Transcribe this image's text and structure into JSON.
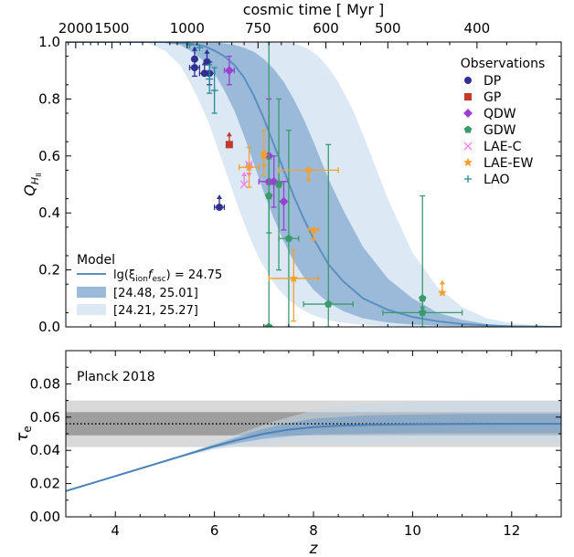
{
  "chart_data": [
    {
      "type": "line",
      "panel": "top",
      "ylabel_main": "Q",
      "ylabel_sub": "H",
      "ylabel_subsub": "II",
      "xlim": [
        3,
        13
      ],
      "ylim": [
        0,
        1.0
      ],
      "yticks": [
        "0.0",
        "0.2",
        "0.4",
        "0.6",
        "0.8",
        "1.0"
      ],
      "top_axis": {
        "label": "cosmic time [ Myr ]",
        "ticks": [
          {
            "label": "2000",
            "z": 3.2
          },
          {
            "label": "1500",
            "z": 3.93
          },
          {
            "label": "1000",
            "z": 5.45
          },
          {
            "label": "750",
            "z": 6.88
          },
          {
            "label": "600",
            "z": 8.25
          },
          {
            "label": "500",
            "z": 9.5
          },
          {
            "label": "400",
            "z": 11.3
          }
        ]
      },
      "series": [
        {
          "name": "lg(ξionfesc) = 24.75",
          "kind": "median",
          "color": "#5b8fc0",
          "x": [
            3,
            5.0,
            5.5,
            5.8,
            6.0,
            6.2,
            6.4,
            6.6,
            6.8,
            7.0,
            7.2,
            7.4,
            7.6,
            7.8,
            8.0,
            8.3,
            8.6,
            9.0,
            9.5,
            10,
            10.5,
            11,
            11.5,
            12,
            13
          ],
          "y": [
            1.0,
            1.0,
            0.995,
            0.985,
            0.97,
            0.95,
            0.92,
            0.875,
            0.81,
            0.73,
            0.64,
            0.55,
            0.46,
            0.38,
            0.31,
            0.22,
            0.16,
            0.1,
            0.06,
            0.035,
            0.02,
            0.01,
            0.005,
            0.002,
            0.0
          ]
        },
        {
          "name": "[24.48, 25.01]",
          "kind": "band",
          "color": "#9bbad9",
          "x": [
            3,
            4.8,
            5.3,
            5.6,
            5.8,
            6.0,
            6.2,
            6.4,
            6.6,
            6.8,
            7.0,
            7.2,
            7.4,
            7.6,
            7.8,
            8.0,
            8.3,
            8.6,
            9.0,
            9.5,
            10,
            10.5,
            11,
            11.5,
            12,
            13
          ],
          "upper": [
            1.0,
            1.0,
            1.0,
            1.0,
            1.0,
            1.0,
            0.995,
            0.99,
            0.98,
            0.965,
            0.94,
            0.905,
            0.86,
            0.8,
            0.73,
            0.65,
            0.52,
            0.41,
            0.28,
            0.17,
            0.1,
            0.05,
            0.025,
            0.01,
            0.003,
            0.0
          ],
          "lower": [
            1.0,
            1.0,
            0.99,
            0.96,
            0.93,
            0.89,
            0.83,
            0.76,
            0.67,
            0.57,
            0.47,
            0.38,
            0.3,
            0.23,
            0.175,
            0.13,
            0.085,
            0.055,
            0.03,
            0.015,
            0.008,
            0.004,
            0.002,
            0.001,
            0.0,
            0.0
          ]
        },
        {
          "name": "[24.21, 25.27]",
          "kind": "band",
          "color": "#dce8f3",
          "x": [
            3,
            4.6,
            5.0,
            5.3,
            5.5,
            5.7,
            5.9,
            6.1,
            6.3,
            6.5,
            6.7,
            6.9,
            7.1,
            7.3,
            7.5,
            7.7,
            7.9,
            8.1,
            8.3,
            8.5,
            8.8,
            9.1,
            9.5,
            10,
            10.5,
            11,
            11.5,
            12,
            13
          ],
          "upper": [
            1.0,
            1.0,
            1.0,
            1.0,
            1.0,
            1.0,
            1.0,
            1.0,
            1.0,
            1.0,
            1.0,
            1.0,
            1.0,
            1.0,
            1.0,
            0.99,
            0.975,
            0.95,
            0.91,
            0.86,
            0.76,
            0.63,
            0.45,
            0.26,
            0.14,
            0.07,
            0.03,
            0.012,
            0.0
          ],
          "lower": [
            1.0,
            1.0,
            0.97,
            0.92,
            0.86,
            0.79,
            0.71,
            0.61,
            0.51,
            0.41,
            0.32,
            0.24,
            0.18,
            0.13,
            0.095,
            0.068,
            0.048,
            0.034,
            0.024,
            0.017,
            0.01,
            0.006,
            0.003,
            0.001,
            0.0,
            0.0,
            0.0,
            0.0,
            0.0
          ]
        }
      ],
      "observations": [
        {
          "name": "DP",
          "marker": "circle",
          "color": "#2e3192",
          "points": [
            {
              "x": 5.6,
              "y": 0.91,
              "xerr": 0.1,
              "yerr": 0.03
            },
            {
              "x": 5.8,
              "y": 0.89,
              "xerr": 0.1,
              "up": true
            },
            {
              "x": 5.9,
              "y": 0.89,
              "xerr": 0.1,
              "yerr": 0.04
            },
            {
              "x": 5.6,
              "y": 0.94,
              "up": true
            },
            {
              "x": 5.85,
              "y": 0.93,
              "up": true
            },
            {
              "x": 6.1,
              "y": 0.42,
              "xerr": 0.1,
              "up": true
            }
          ]
        },
        {
          "name": "GP",
          "marker": "square",
          "color": "#c0392b",
          "points": [
            {
              "x": 6.3,
              "y": 0.64,
              "up": true
            }
          ]
        },
        {
          "name": "QDW",
          "marker": "diamond",
          "color": "#9b3fcf",
          "points": [
            {
              "x": 6.3,
              "y": 0.9,
              "xerr": 0.1,
              "yerr": 0.05
            },
            {
              "x": 7.1,
              "y": 0.6,
              "yerr_lo": 0.1,
              "yerr_hi": 0.2
            },
            {
              "x": 7.2,
              "y": 0.51,
              "xerr": 0.3,
              "yerr": 0.09
            },
            {
              "x": 7.4,
              "y": 0.44,
              "yerr_lo": 0.1,
              "yerr_hi": 0.07
            },
            {
              "x": 7.1,
              "y": 0.51,
              "xerr": 0.2
            }
          ]
        },
        {
          "name": "GDW",
          "marker": "pentagon",
          "color": "#3a9a6c",
          "points": [
            {
              "x": 7.1,
              "y": 0.46,
              "yerr": 0.13
            },
            {
              "x": 7.3,
              "y": 0.5,
              "yerr": 0.3
            },
            {
              "x": 7.5,
              "y": 0.31,
              "xerr": 0.2,
              "yerr_lo": 0.31,
              "yerr_hi": 0.38
            },
            {
              "x": 7.1,
              "y": 0.0,
              "yerr_lo": 0.0,
              "yerr_hi": 1.0
            },
            {
              "x": 8.3,
              "y": 0.08,
              "xerr": 0.5,
              "yerr_lo": 0.08,
              "yerr_hi": 0.56
            },
            {
              "x": 10.2,
              "y": 0.05,
              "xerr": 0.8,
              "yerr_lo": 0.05,
              "yerr_hi": 0.41
            },
            {
              "x": 10.2,
              "y": 0.1,
              "down": true
            }
          ]
        },
        {
          "name": "LAE-C",
          "marker": "x",
          "color": "#ee82ee",
          "points": [
            {
              "x": 6.6,
              "y": 0.5,
              "up": true
            },
            {
              "x": 6.7,
              "y": 0.57,
              "xerr": 0.05,
              "down": true
            }
          ]
        },
        {
          "name": "LAE-EW",
          "marker": "star",
          "color": "#f5a030",
          "points": [
            {
              "x": 6.7,
              "y": 0.56,
              "xerr": 0.2,
              "yerr": 0.07
            },
            {
              "x": 7.0,
              "y": 0.61,
              "yerr": 0.08
            },
            {
              "x": 7.0,
              "y": 0.6,
              "down": true
            },
            {
              "x": 7.9,
              "y": 0.55,
              "xerr": 0.6,
              "down": true
            },
            {
              "x": 8.0,
              "y": 0.34,
              "xerr": 0.1,
              "down": true
            },
            {
              "x": 7.6,
              "y": 0.17,
              "xerr": 0.5,
              "yerr_lo": 0.15,
              "yerr_hi": 0.1
            },
            {
              "x": 10.6,
              "y": 0.12,
              "up": true
            }
          ]
        },
        {
          "name": "LAO",
          "marker": "plus",
          "color": "#2a8a9a",
          "points": [
            {
              "x": 5.5,
              "y": 0.99
            },
            {
              "x": 5.7,
              "y": 0.98
            },
            {
              "x": 5.9,
              "y": 0.87,
              "yerr": 0.05
            },
            {
              "x": 6.0,
              "y": 0.83,
              "yerr": 0.08
            }
          ]
        }
      ]
    },
    {
      "type": "line",
      "panel": "bottom",
      "xlabel": "z",
      "ylabel_main": "τ",
      "ylabel_sub": "e",
      "xlim": [
        3,
        13
      ],
      "ylim": [
        0.0,
        0.1
      ],
      "xticks": [
        "4",
        "6",
        "8",
        "10",
        "12"
      ],
      "yticks": [
        "0.00",
        "0.02",
        "0.04",
        "0.06",
        "0.08"
      ],
      "planck": {
        "label": "Planck 2018",
        "value": 0.056,
        "sigma1": [
          0.049,
          0.063
        ],
        "sigma2": [
          0.042,
          0.07
        ]
      },
      "median": {
        "x": [
          3,
          4,
          5,
          6,
          6.5,
          7,
          7.5,
          8,
          8.5,
          9,
          10,
          11,
          12,
          13
        ],
        "y": [
          0.0155,
          0.0245,
          0.0335,
          0.0425,
          0.0465,
          0.05,
          0.0525,
          0.054,
          0.0548,
          0.0553,
          0.0557,
          0.0559,
          0.056,
          0.056
        ]
      },
      "band_inner": {
        "x": [
          3,
          5,
          6,
          6.5,
          7,
          7.5,
          8,
          9,
          10,
          11,
          13
        ],
        "upper": [
          0.0155,
          0.0335,
          0.0435,
          0.0485,
          0.053,
          0.0565,
          0.059,
          0.061,
          0.0615,
          0.062,
          0.062
        ],
        "lower": [
          0.0155,
          0.0335,
          0.0415,
          0.0445,
          0.047,
          0.0485,
          0.0495,
          0.05,
          0.0502,
          0.0503,
          0.0503
        ]
      },
      "band_outer": {
        "x": [
          3,
          5,
          6,
          6.5,
          7,
          7.5,
          8,
          9,
          10,
          11,
          13
        ],
        "upper": [
          0.0155,
          0.0335,
          0.0445,
          0.05,
          0.0555,
          0.06,
          0.064,
          0.0675,
          0.069,
          0.0695,
          0.0697
        ],
        "lower": [
          0.0155,
          0.0335,
          0.0405,
          0.0425,
          0.0435,
          0.044,
          0.0445,
          0.0447,
          0.0448,
          0.0448,
          0.0448
        ]
      }
    }
  ],
  "legend_observations": {
    "title": "Observations",
    "entries": [
      "DP",
      "GP",
      "QDW",
      "GDW",
      "LAE-C",
      "LAE-EW",
      "LAO"
    ]
  },
  "legend_model": {
    "title": "Model",
    "median_prefix": "lg(ξ",
    "median_sub1": "ion",
    "median_mid": "f",
    "median_sub2": "esc",
    "median_suffix": ") = 24.75",
    "band1": "[24.48, 25.01]",
    "band2": "[24.21, 25.27]"
  }
}
